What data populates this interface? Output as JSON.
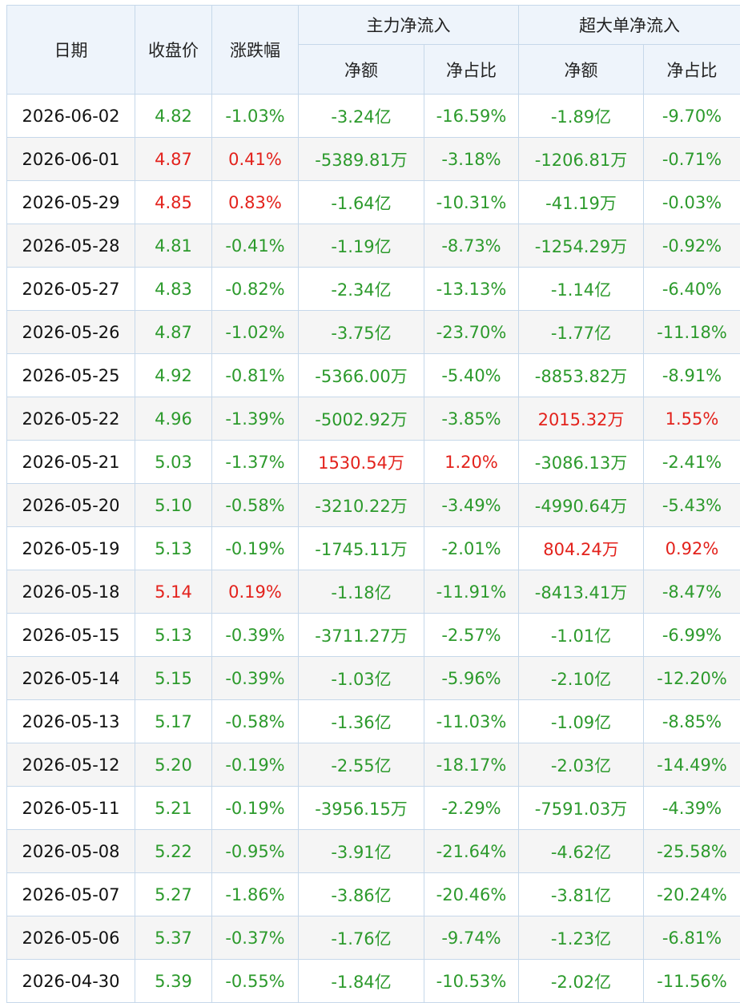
{
  "header": {
    "date": "日期",
    "close": "收盘价",
    "change": "涨跌幅",
    "main": "主力净流入",
    "super": "超大单净流入",
    "sub": [
      "净额",
      "净占比",
      "净额",
      "净占比"
    ]
  },
  "table": {
    "rows": [
      [
        "2026-06-02",
        "4.82",
        "-1.03%",
        "-3.24亿",
        "-16.59%",
        "-1.89亿",
        "-9.70%"
      ],
      [
        "2026-06-01",
        "4.87",
        "0.41%",
        "-5389.81万",
        "-3.18%",
        "-1206.81万",
        "-0.71%"
      ],
      [
        "2026-05-29",
        "4.85",
        "0.83%",
        "-1.64亿",
        "-10.31%",
        "-41.19万",
        "-0.03%"
      ],
      [
        "2026-05-28",
        "4.81",
        "-0.41%",
        "-1.19亿",
        "-8.73%",
        "-1254.29万",
        "-0.92%"
      ],
      [
        "2026-05-27",
        "4.83",
        "-0.82%",
        "-2.34亿",
        "-13.13%",
        "-1.14亿",
        "-6.40%"
      ],
      [
        "2026-05-26",
        "4.87",
        "-1.02%",
        "-3.75亿",
        "-23.70%",
        "-1.77亿",
        "-11.18%"
      ],
      [
        "2026-05-25",
        "4.92",
        "-0.81%",
        "-5366.00万",
        "-5.40%",
        "-8853.82万",
        "-8.91%"
      ],
      [
        "2026-05-22",
        "4.96",
        "-1.39%",
        "-5002.92万",
        "-3.85%",
        "2015.32万",
        "1.55%"
      ],
      [
        "2026-05-21",
        "5.03",
        "-1.37%",
        "1530.54万",
        "1.20%",
        "-3086.13万",
        "-2.41%"
      ],
      [
        "2026-05-20",
        "5.10",
        "-0.58%",
        "-3210.22万",
        "-3.49%",
        "-4990.64万",
        "-5.43%"
      ],
      [
        "2026-05-19",
        "5.13",
        "-0.19%",
        "-1745.11万",
        "-2.01%",
        "804.24万",
        "0.92%"
      ],
      [
        "2026-05-18",
        "5.14",
        "0.19%",
        "-1.18亿",
        "-11.91%",
        "-8413.41万",
        "-8.47%"
      ],
      [
        "2026-05-15",
        "5.13",
        "-0.39%",
        "-3711.27万",
        "-2.57%",
        "-1.01亿",
        "-6.99%"
      ],
      [
        "2026-05-14",
        "5.15",
        "-0.39%",
        "-1.03亿",
        "-5.96%",
        "-2.10亿",
        "-12.20%"
      ],
      [
        "2026-05-13",
        "5.17",
        "-0.58%",
        "-1.36亿",
        "-11.03%",
        "-1.09亿",
        "-8.85%"
      ],
      [
        "2026-05-12",
        "5.20",
        "-0.19%",
        "-2.55亿",
        "-18.17%",
        "-2.03亿",
        "-14.49%"
      ],
      [
        "2026-05-11",
        "5.21",
        "-0.19%",
        "-3956.15万",
        "-2.29%",
        "-7591.03万",
        "-4.39%"
      ],
      [
        "2026-05-08",
        "5.22",
        "-0.95%",
        "-3.91亿",
        "-21.64%",
        "-4.62亿",
        "-25.58%"
      ],
      [
        "2026-05-07",
        "5.27",
        "-1.86%",
        "-3.86亿",
        "-20.46%",
        "-3.81亿",
        "-20.24%"
      ],
      [
        "2026-05-06",
        "5.37",
        "-0.37%",
        "-1.76亿",
        "-9.74%",
        "-1.23亿",
        "-6.81%"
      ],
      [
        "2026-04-30",
        "5.39",
        "-0.55%",
        "-1.84亿",
        "-10.53%",
        "-2.02亿",
        "-11.56%"
      ]
    ]
  }
}
